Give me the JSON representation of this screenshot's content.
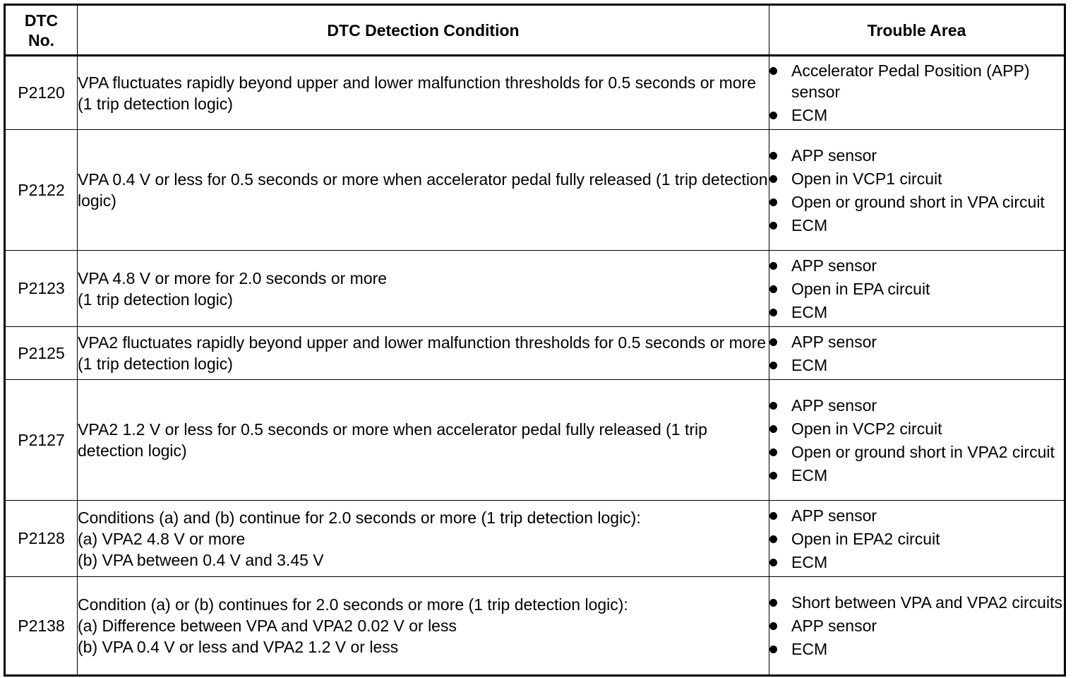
{
  "headers": {
    "dtc_no_line1": "DTC",
    "dtc_no_line2": "No.",
    "condition": "DTC Detection Condition",
    "trouble_area": "Trouble Area"
  },
  "rows": [
    {
      "dtc": "P2120",
      "condition": [
        "VPA fluctuates rapidly beyond upper and lower malfunction thresholds for 0.5 seconds or more (1 trip detection logic)"
      ],
      "areas": [
        "Accelerator Pedal Position (APP) sensor",
        "ECM"
      ]
    },
    {
      "dtc": "P2122",
      "condition": [
        "VPA 0.4 V or less for 0.5 seconds or more when accelerator pedal fully released (1 trip detection logic)"
      ],
      "areas": [
        "APP sensor",
        "Open in VCP1 circuit",
        "Open or ground short in VPA circuit",
        "ECM"
      ]
    },
    {
      "dtc": "P2123",
      "condition": [
        "VPA 4.8 V or more for 2.0 seconds or more",
        "(1 trip detection logic)"
      ],
      "areas": [
        "APP sensor",
        "Open in EPA circuit",
        "ECM"
      ]
    },
    {
      "dtc": "P2125",
      "condition": [
        "VPA2 fluctuates rapidly beyond upper and lower malfunction thresholds for 0.5 seconds or more (1 trip detection logic)"
      ],
      "areas": [
        "APP sensor",
        "ECM"
      ]
    },
    {
      "dtc": "P2127",
      "condition": [
        "VPA2 1.2 V or less for 0.5 seconds or more when accelerator pedal fully released (1 trip detection logic)"
      ],
      "areas": [
        "APP sensor",
        "Open in VCP2 circuit",
        "Open or ground short in VPA2 circuit",
        "ECM"
      ]
    },
    {
      "dtc": "P2128",
      "condition": [
        "Conditions (a) and (b) continue for 2.0 seconds or more (1 trip detection logic):",
        "(a) VPA2 4.8 V or more",
        "(b) VPA between 0.4 V and 3.45 V"
      ],
      "areas": [
        "APP sensor",
        "Open in EPA2 circuit",
        "ECM"
      ]
    },
    {
      "dtc": "P2138",
      "condition": [
        "Condition (a) or (b) continues for 2.0 seconds or more (1 trip detection logic):",
        "(a) Difference between VPA and VPA2 0.02 V or less",
        "(b) VPA 0.4 V or less and VPA2 1.2 V or less"
      ],
      "areas": [
        "Short between VPA and VPA2 circuits",
        "APP sensor",
        "ECM"
      ]
    }
  ]
}
